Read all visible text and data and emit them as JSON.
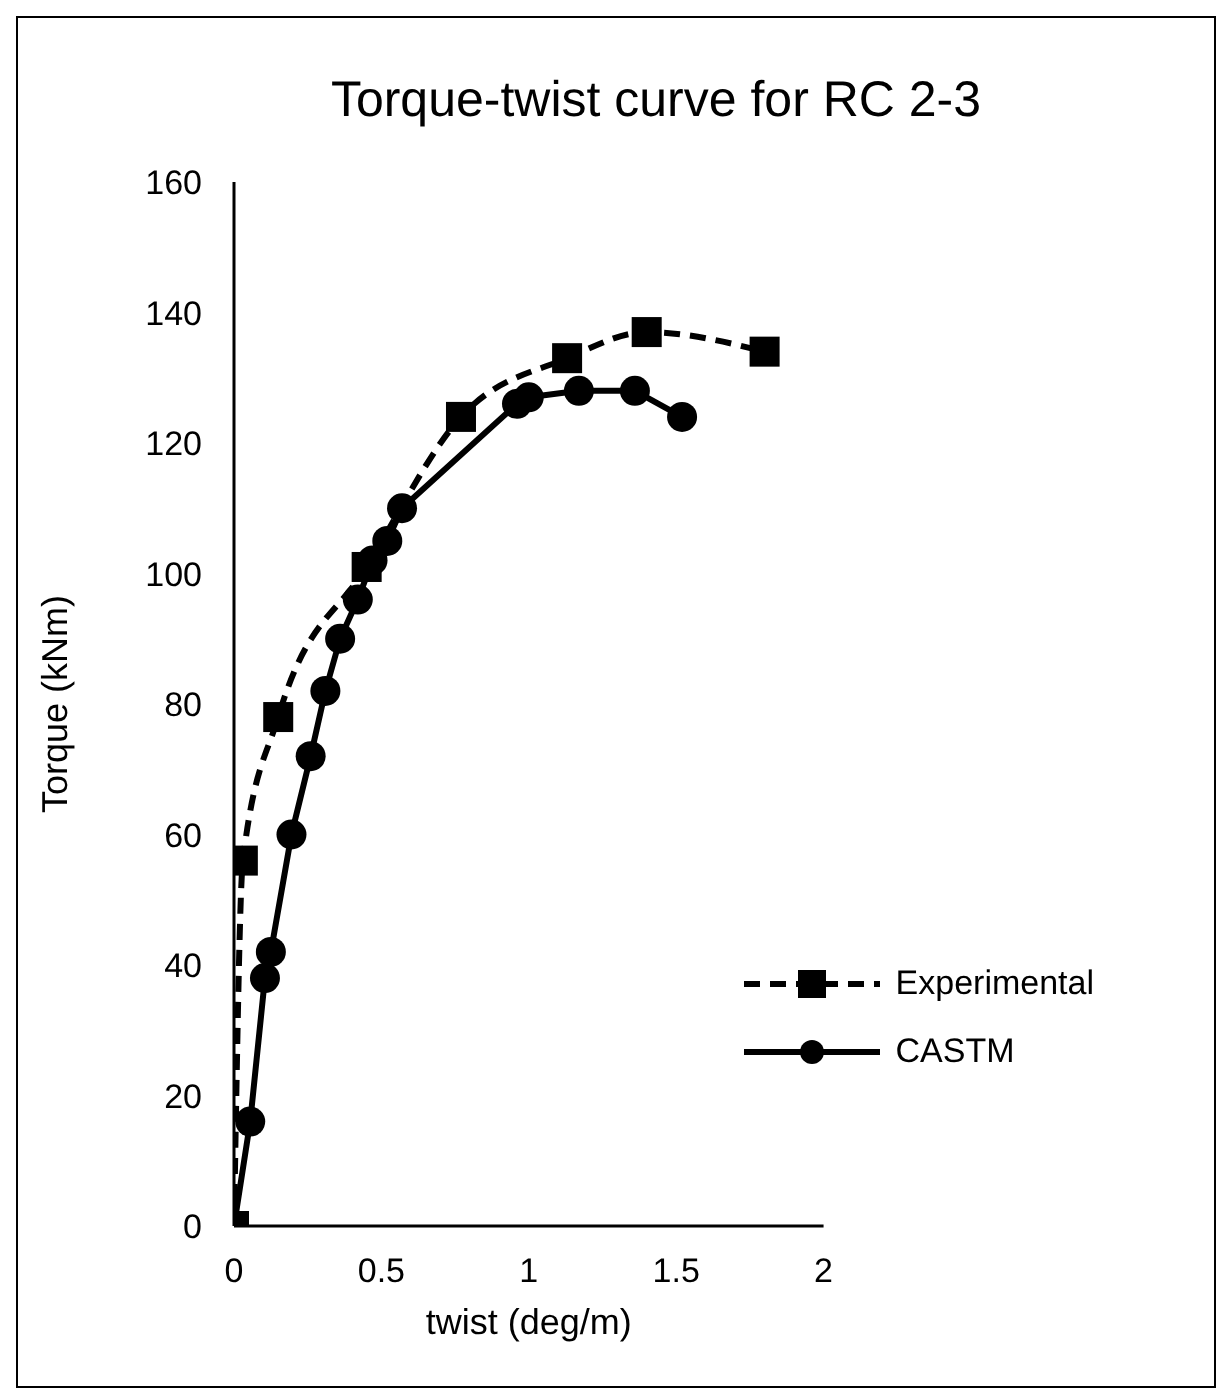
{
  "chart_data": {
    "type": "line",
    "title": "Torque-twist curve for RC 2-3",
    "xlabel": "twist (deg/m)",
    "ylabel": "Torque (kNm)",
    "xlim": [
      0,
      2
    ],
    "xticks": [
      0,
      {
        "value": 0.5,
        "label": "0.5"
      },
      1,
      {
        "value": 1.5,
        "label": "1.5"
      },
      2
    ],
    "ylim": [
      0,
      160
    ],
    "yticks": [
      0,
      20,
      40,
      60,
      80,
      100,
      120,
      140,
      160
    ],
    "grid": false,
    "legend": "bottom right",
    "series": [
      {
        "name": "Experimental",
        "color": "#000000",
        "marker": "square",
        "line_style": "dashed",
        "x": [
          0,
          0.03,
          0.15,
          0.45,
          0.77,
          1.13,
          1.4,
          1.8
        ],
        "values": [
          0,
          56,
          78,
          101,
          124,
          133,
          137,
          134
        ]
      },
      {
        "name": "CASTM",
        "color": "#000000",
        "marker": "circle",
        "line_style": "solid",
        "x": [
          0,
          0.055,
          0.105,
          0.125,
          0.195,
          0.26,
          0.31,
          0.36,
          0.42,
          0.47,
          0.52,
          0.57,
          0.96,
          1.0,
          1.17,
          1.36,
          1.52
        ],
        "values": [
          0,
          16,
          38,
          42,
          60,
          72,
          82,
          90,
          96,
          102,
          105,
          110,
          126,
          127,
          128,
          128,
          124
        ]
      }
    ]
  }
}
